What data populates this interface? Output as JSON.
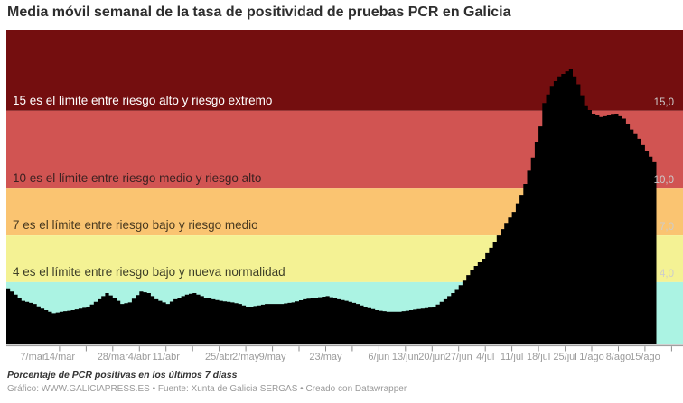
{
  "header": {
    "title": "Media móvil semanal de la tasa de positividad de pruebas PCR en Galicia"
  },
  "footer": {
    "note": "Porcentaje de PCR positivas en los últimos 7 díass",
    "byline": "Gráfico: WWW.GALICIAPRESS.ES • Fuente: Xunta de Galicia SERGAS • Creado con Datawrapper"
  },
  "chart_data": {
    "type": "area",
    "title": "Media móvil semanal de la tasa de positividad de pruebas PCR en Galicia",
    "ylabel": "Porcentaje de PCR positivas en los últimos 7 días",
    "unit": "%",
    "ylim": [
      0,
      20.2
    ],
    "grid": false,
    "area_color": "#000000",
    "axis_label_color": "#cccccc",
    "tick_label_color": "#9b9b9b",
    "axis_line_color": "#a0a0a0",
    "t_unit": "days since 28/feb",
    "x_total_days": 178,
    "zones": [
      {
        "name": "riesgo extremo",
        "min": 15,
        "max": 20.2,
        "color": "#740e0f"
      },
      {
        "name": "riesgo alto",
        "min": 10,
        "max": 15,
        "color": "#d15452"
      },
      {
        "name": "riesgo medio",
        "min": 7,
        "max": 10,
        "color": "#fac471"
      },
      {
        "name": "riesgo bajo",
        "min": 4,
        "max": 7,
        "color": "#f4f294"
      },
      {
        "name": "nueva normalidad",
        "min": 0,
        "max": 4,
        "color": "#abf3e3"
      }
    ],
    "thresholds": [
      {
        "value": 15,
        "text": "15 es el límite entre riesgo alto y riesgo extremo",
        "text_color": "#ffffff",
        "axis_label": "15,0"
      },
      {
        "value": 10,
        "text": "10 es el límite entre riesgo medio y riesgo alto",
        "text_color": "#3c2121",
        "axis_label": "10,0"
      },
      {
        "value": 7,
        "text": "7 es el límite entre riesgo bajo y riesgo medio",
        "text_color": "#4a3a20",
        "axis_label": "7,0"
      },
      {
        "value": 4,
        "text": "4 es el límite entre riesgo bajo y nueva normalidad",
        "text_color": "#3f4028",
        "axis_label": "4,0"
      }
    ],
    "ticks": [
      {
        "t": 7,
        "label": "7/mar"
      },
      {
        "t": 14,
        "label": "14/mar"
      },
      {
        "t": 21,
        "label": ""
      },
      {
        "t": 28,
        "label": "28/mar"
      },
      {
        "t": 35,
        "label": "4/abr"
      },
      {
        "t": 42,
        "label": "11/abr"
      },
      {
        "t": 49,
        "label": ""
      },
      {
        "t": 56,
        "label": "25/abr"
      },
      {
        "t": 63,
        "label": "2/may"
      },
      {
        "t": 70,
        "label": "9/may"
      },
      {
        "t": 77,
        "label": ""
      },
      {
        "t": 84,
        "label": "23/may"
      },
      {
        "t": 91,
        "label": ""
      },
      {
        "t": 98,
        "label": "6/jun"
      },
      {
        "t": 105,
        "label": "13/jun"
      },
      {
        "t": 112,
        "label": "20/jun"
      },
      {
        "t": 119,
        "label": "27/jun"
      },
      {
        "t": 126,
        "label": "4/jul"
      },
      {
        "t": 133,
        "label": "11/jul"
      },
      {
        "t": 140,
        "label": "18/jul"
      },
      {
        "t": 147,
        "label": "25/jul"
      },
      {
        "t": 154,
        "label": "1/ago"
      },
      {
        "t": 161,
        "label": "8/ago"
      },
      {
        "t": 168,
        "label": "15/ago"
      },
      {
        "t": 175,
        "label": ""
      }
    ],
    "points": [
      [
        0,
        3.6
      ],
      [
        2,
        3.2
      ],
      [
        4,
        2.8
      ],
      [
        7,
        2.6
      ],
      [
        9,
        2.3
      ],
      [
        12,
        2.0
      ],
      [
        14,
        2.1
      ],
      [
        17,
        2.2
      ],
      [
        21,
        2.4
      ],
      [
        24,
        2.9
      ],
      [
        26,
        3.3
      ],
      [
        28,
        3.0
      ],
      [
        30,
        2.6
      ],
      [
        32,
        2.7
      ],
      [
        35,
        3.4
      ],
      [
        37,
        3.3
      ],
      [
        39,
        2.9
      ],
      [
        42,
        2.6
      ],
      [
        44,
        2.9
      ],
      [
        47,
        3.2
      ],
      [
        49,
        3.3
      ],
      [
        52,
        3.0
      ],
      [
        54,
        2.9
      ],
      [
        56,
        2.8
      ],
      [
        59,
        2.7
      ],
      [
        61,
        2.6
      ],
      [
        63,
        2.4
      ],
      [
        66,
        2.5
      ],
      [
        68,
        2.6
      ],
      [
        72,
        2.6
      ],
      [
        75,
        2.7
      ],
      [
        78,
        2.9
      ],
      [
        81,
        3.0
      ],
      [
        84,
        3.1
      ],
      [
        87,
        2.9
      ],
      [
        89,
        2.8
      ],
      [
        92,
        2.6
      ],
      [
        94,
        2.4
      ],
      [
        97,
        2.2
      ],
      [
        100,
        2.1
      ],
      [
        103,
        2.1
      ],
      [
        106,
        2.2
      ],
      [
        109,
        2.3
      ],
      [
        112,
        2.4
      ],
      [
        115,
        2.9
      ],
      [
        118,
        3.5
      ],
      [
        120,
        4.1
      ],
      [
        122,
        4.8
      ],
      [
        125,
        5.5
      ],
      [
        127,
        6.2
      ],
      [
        129,
        7.0
      ],
      [
        131,
        7.8
      ],
      [
        133,
        8.5
      ],
      [
        135,
        9.6
      ],
      [
        136,
        10.3
      ],
      [
        138,
        12.0
      ],
      [
        140,
        14.0
      ],
      [
        141,
        15.5
      ],
      [
        143,
        16.6
      ],
      [
        145,
        17.2
      ],
      [
        148,
        17.7
      ],
      [
        150,
        16.7
      ],
      [
        152,
        15.3
      ],
      [
        154,
        14.8
      ],
      [
        156,
        14.6
      ],
      [
        158,
        14.7
      ],
      [
        160,
        14.8
      ],
      [
        162,
        14.5
      ],
      [
        164,
        13.8
      ],
      [
        166,
        13.2
      ],
      [
        168,
        12.4
      ],
      [
        170,
        11.7
      ],
      [
        171,
        11.0
      ]
    ]
  }
}
